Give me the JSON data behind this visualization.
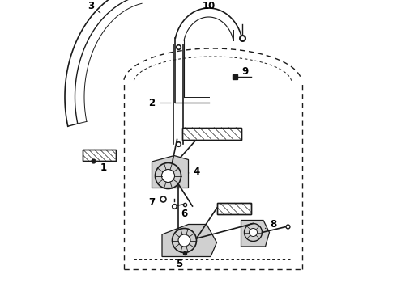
{
  "bg_color": "#ffffff",
  "line_color": "#1a1a1a",
  "label_color": "#000000",
  "figsize": [
    4.9,
    3.6
  ],
  "dpi": 100,
  "xlim": [
    0,
    9.8
  ],
  "ylim": [
    0,
    7.2
  ]
}
